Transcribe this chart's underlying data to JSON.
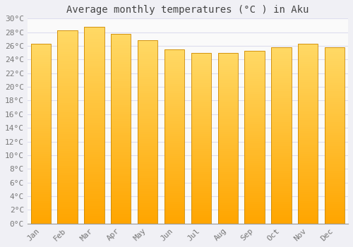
{
  "title": "Average monthly temperatures (°C ) in Aku",
  "months": [
    "Jan",
    "Feb",
    "Mar",
    "Apr",
    "May",
    "Jun",
    "Jul",
    "Aug",
    "Sep",
    "Oct",
    "Nov",
    "Dec"
  ],
  "values": [
    26.3,
    28.3,
    28.8,
    27.8,
    26.8,
    25.5,
    25.0,
    25.0,
    25.3,
    25.8,
    26.3,
    25.8
  ],
  "ylim": [
    0,
    30
  ],
  "yticks": [
    0,
    2,
    4,
    6,
    8,
    10,
    12,
    14,
    16,
    18,
    20,
    22,
    24,
    26,
    28,
    30
  ],
  "bar_color_bottom": "#FFA500",
  "bar_color_top": "#FFD966",
  "bar_edge_color": "#CC8800",
  "background_color": "#F0F0F5",
  "plot_bg_color": "#FAFAFA",
  "grid_color": "#DDDDEE",
  "title_fontsize": 10,
  "tick_fontsize": 8,
  "bar_width": 0.75,
  "figsize": [
    5.0,
    3.5
  ],
  "dpi": 100
}
